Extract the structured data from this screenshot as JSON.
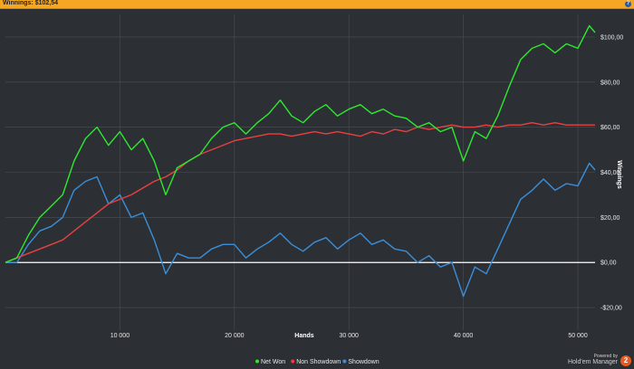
{
  "header": {
    "title": "Winnings: $102,54",
    "help_icon": "help-icon",
    "help_label": "?"
  },
  "brand": {
    "powered": "Powered by",
    "name": "Hold'em Manager",
    "badge": "2"
  },
  "colors": {
    "background": "#2c3035",
    "grid": "#4a4f55",
    "zero_line": "#ffffff",
    "net_won": "#2ee82e",
    "non_showdown": "#e84040",
    "showdown": "#3a8fd8"
  },
  "chart_data": {
    "type": "line",
    "xlabel": "Hands",
    "ylabel": "Winnings",
    "xlim": [
      0,
      51500
    ],
    "ylim": [
      -30,
      110
    ],
    "x_ticks": [
      10000,
      20000,
      30000,
      40000,
      50000
    ],
    "x_tick_labels": [
      "10 000",
      "20 000",
      "30 000",
      "40 000",
      "50 000"
    ],
    "y_ticks": [
      100,
      80,
      60,
      40,
      20,
      0,
      -20
    ],
    "y_tick_labels": [
      "$100,00",
      "$80,00",
      "$60,00",
      "$40,00",
      "$20,00",
      "$0,00",
      "-$20,00"
    ],
    "grid": true,
    "legend_position": "bottom",
    "series": [
      {
        "name": "Net Won",
        "color": "#2ee82e",
        "x": [
          0,
          1000,
          2000,
          3000,
          4000,
          5000,
          6000,
          7000,
          8000,
          9000,
          10000,
          11000,
          12000,
          13000,
          14000,
          15000,
          16000,
          17000,
          18000,
          19000,
          20000,
          21000,
          22000,
          23000,
          24000,
          25000,
          26000,
          27000,
          28000,
          29000,
          30000,
          31000,
          32000,
          33000,
          34000,
          35000,
          36000,
          37000,
          38000,
          39000,
          40000,
          41000,
          42000,
          43000,
          44000,
          45000,
          46000,
          47000,
          48000,
          49000,
          50000,
          51000,
          51500
        ],
        "y": [
          0,
          2,
          12,
          20,
          25,
          30,
          45,
          55,
          60,
          52,
          58,
          50,
          55,
          45,
          30,
          42,
          45,
          48,
          55,
          60,
          62,
          57,
          62,
          66,
          72,
          65,
          62,
          67,
          70,
          65,
          68,
          70,
          66,
          68,
          65,
          64,
          60,
          62,
          58,
          60,
          45,
          58,
          55,
          65,
          78,
          90,
          95,
          97,
          93,
          97,
          95,
          105,
          102
        ]
      },
      {
        "name": "Non Showdown",
        "color": "#e84040",
        "x": [
          0,
          1000,
          2000,
          3000,
          4000,
          5000,
          6000,
          7000,
          8000,
          9000,
          10000,
          11000,
          12000,
          13000,
          14000,
          15000,
          16000,
          17000,
          18000,
          19000,
          20000,
          21000,
          22000,
          23000,
          24000,
          25000,
          26000,
          27000,
          28000,
          29000,
          30000,
          31000,
          32000,
          33000,
          34000,
          35000,
          36000,
          37000,
          38000,
          39000,
          40000,
          41000,
          42000,
          43000,
          44000,
          45000,
          46000,
          47000,
          48000,
          49000,
          50000,
          51000,
          51500
        ],
        "y": [
          0,
          2,
          4,
          6,
          8,
          10,
          14,
          18,
          22,
          26,
          28,
          30,
          33,
          36,
          38,
          41,
          45,
          48,
          50,
          52,
          54,
          55,
          56,
          57,
          57,
          56,
          57,
          58,
          57,
          58,
          57,
          56,
          58,
          57,
          59,
          58,
          60,
          59,
          60,
          61,
          60,
          60,
          61,
          60,
          61,
          61,
          62,
          61,
          62,
          61,
          61,
          61,
          61
        ]
      },
      {
        "name": "Showdown",
        "color": "#3a8fd8",
        "x": [
          0,
          1000,
          2000,
          3000,
          4000,
          5000,
          6000,
          7000,
          8000,
          9000,
          10000,
          11000,
          12000,
          13000,
          14000,
          15000,
          16000,
          17000,
          18000,
          19000,
          20000,
          21000,
          22000,
          23000,
          24000,
          25000,
          26000,
          27000,
          28000,
          29000,
          30000,
          31000,
          32000,
          33000,
          34000,
          35000,
          36000,
          37000,
          38000,
          39000,
          40000,
          41000,
          42000,
          43000,
          44000,
          45000,
          46000,
          47000,
          48000,
          49000,
          50000,
          51000,
          51500
        ],
        "y": [
          0,
          0,
          8,
          14,
          16,
          20,
          32,
          36,
          38,
          26,
          30,
          20,
          22,
          10,
          -5,
          4,
          2,
          2,
          6,
          8,
          8,
          2,
          6,
          9,
          13,
          8,
          5,
          9,
          11,
          6,
          10,
          13,
          8,
          10,
          6,
          5,
          0,
          3,
          -2,
          0,
          -15,
          -2,
          -5,
          6,
          17,
          28,
          32,
          37,
          32,
          35,
          34,
          44,
          41
        ]
      }
    ]
  }
}
